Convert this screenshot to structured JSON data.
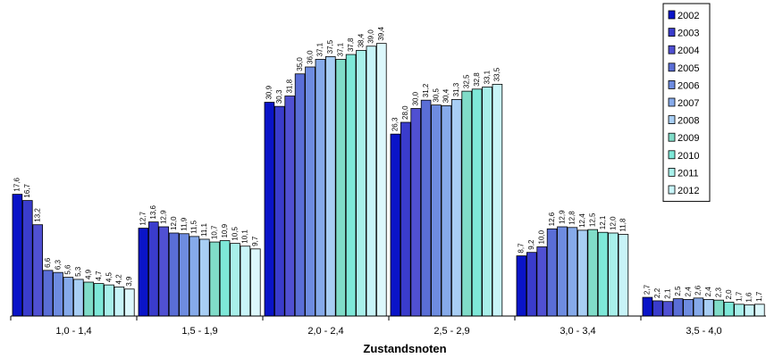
{
  "chart_data": {
    "type": "bar",
    "xlabel": "Zustandsnoten",
    "ylabel": "",
    "legend_position": "top-right",
    "grid": false,
    "ylim": [
      0,
      40
    ],
    "categories": [
      "1,0 - 1,4",
      "1,5 - 1,9",
      "2,0 - 2,4",
      "2,5 - 2,9",
      "3,0 - 3,4",
      "3,5 - 4,0"
    ],
    "series": [
      {
        "name": "2002",
        "color": "#0a14c8",
        "values": [
          17.6,
          12.7,
          30.9,
          26.3,
          8.7,
          2.7
        ],
        "labels": [
          "17,6",
          "12,7",
          "30,9",
          "26,3",
          "8,7",
          "2,7"
        ]
      },
      {
        "name": "2003",
        "color": "#3a3ccc",
        "values": [
          16.7,
          13.6,
          30.3,
          28.0,
          9.2,
          2.2
        ],
        "labels": [
          "16,7",
          "13,6",
          "30,3",
          "28,0",
          "9,2",
          "2,2"
        ]
      },
      {
        "name": "2004",
        "color": "#5050d2",
        "values": [
          13.2,
          12.9,
          31.8,
          30.0,
          10.0,
          2.1
        ],
        "labels": [
          "13,2",
          "12,9",
          "31,8",
          "30,0",
          "10,0",
          "2,1"
        ]
      },
      {
        "name": "2005",
        "color": "#5a6ed6",
        "values": [
          6.6,
          12.0,
          35.0,
          31.2,
          12.6,
          2.5
        ],
        "labels": [
          "6,6",
          "12,0",
          "35,0",
          "31,2",
          "12,6",
          "2,5"
        ]
      },
      {
        "name": "2006",
        "color": "#6e8ce0",
        "values": [
          6.3,
          11.9,
          36.0,
          30.5,
          12.9,
          2.4
        ],
        "labels": [
          "6,3",
          "11,9",
          "36,0",
          "30,5",
          "12,9",
          "2,4"
        ]
      },
      {
        "name": "2007",
        "color": "#86aaea",
        "values": [
          5.6,
          11.5,
          37.1,
          30.4,
          12.8,
          2.6
        ],
        "labels": [
          "5,6",
          "11,5",
          "37,1",
          "30,4",
          "12,8",
          "2,6"
        ]
      },
      {
        "name": "2008",
        "color": "#a8cef4",
        "values": [
          5.3,
          11.1,
          37.5,
          31.3,
          12.4,
          2.4
        ],
        "labels": [
          "5,3",
          "11,1",
          "37,5",
          "31,3",
          "12,4",
          "2,4"
        ]
      },
      {
        "name": "2009",
        "color": "#80dcc8",
        "values": [
          4.9,
          10.7,
          37.1,
          32.5,
          12.5,
          2.3
        ],
        "labels": [
          "4,9",
          "10,7",
          "37,1",
          "32,5",
          "12,5",
          "2,3"
        ]
      },
      {
        "name": "2010",
        "color": "#7ee8d8",
        "values": [
          4.7,
          10.9,
          37.8,
          32.8,
          12.1,
          2.0
        ],
        "labels": [
          "4,7",
          "10,9",
          "37,8",
          "32,8",
          "12,1",
          "2,0"
        ]
      },
      {
        "name": "2011",
        "color": "#a8f0ea",
        "values": [
          4.5,
          10.5,
          38.4,
          33.1,
          12.0,
          1.7
        ],
        "labels": [
          "4,5",
          "10,5",
          "38,4",
          "33,1",
          "12,0",
          "1,7"
        ]
      },
      {
        "name": "2012",
        "color": "#c8f4f8",
        "values": [
          4.2,
          10.1,
          39.0,
          33.5,
          11.8,
          1.6
        ],
        "labels": [
          "4,2",
          "10,1",
          "39,0",
          "33,5",
          "11,8",
          "1,6"
        ]
      },
      {
        "name": "",
        "color": "#ddf8fc",
        "values": [
          3.9,
          9.7,
          39.4,
          null,
          null,
          1.7
        ],
        "labels": [
          "3,9",
          "9,7",
          "39,4",
          "",
          "",
          "1,7"
        ]
      }
    ]
  }
}
